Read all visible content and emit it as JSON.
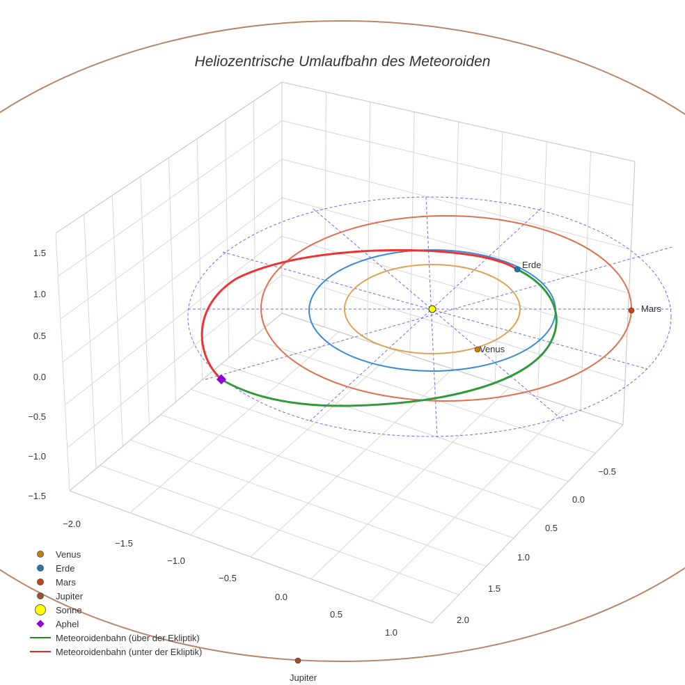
{
  "chart_data": {
    "type": "line",
    "projection": "3d",
    "title": "Heliozentrische Umlaufbahn des Meteoroiden",
    "x_ticks": [
      "−2.0",
      "−1.5",
      "−1.0",
      "−0.5",
      "0.0",
      "0.5",
      "1.0"
    ],
    "y_ticks": [
      "−0.5",
      "0.0",
      "0.5",
      "1.0",
      "1.5",
      "2.0"
    ],
    "z_ticks": [
      "1.5",
      "1.0",
      "0.5",
      "0.0",
      "−0.5",
      "−1.0",
      "−1.5"
    ],
    "xlim": [
      -2.0,
      1.0
    ],
    "ylim": [
      -0.5,
      2.0
    ],
    "zlim": [
      -1.5,
      1.5
    ],
    "labels": {
      "venus": "Venus",
      "erde": "Erde",
      "mars": "Mars",
      "jupiter": "Jupiter"
    },
    "legend": [
      {
        "label": "Venus",
        "color": "#c87f0a",
        "marker": "circle"
      },
      {
        "label": "Erde",
        "color": "#1f77b4",
        "marker": "circle"
      },
      {
        "label": "Mars",
        "color": "#d1400f",
        "marker": "circle"
      },
      {
        "label": "Jupiter",
        "color": "#a0522d",
        "marker": "circle"
      },
      {
        "label": "Sonne",
        "color": "#ffff00",
        "marker": "circle"
      },
      {
        "label": "Aphel",
        "color": "#9400d3",
        "marker": "diamond"
      },
      {
        "label": "Meteoroidenbahn (über der Ekliptik)",
        "color": "#228b22",
        "marker": "line"
      },
      {
        "label": "Meteoroidenbahn (unter der Ekliptik)",
        "color": "#ee2222",
        "marker": "line"
      }
    ],
    "legend_position": "bottom-left"
  }
}
